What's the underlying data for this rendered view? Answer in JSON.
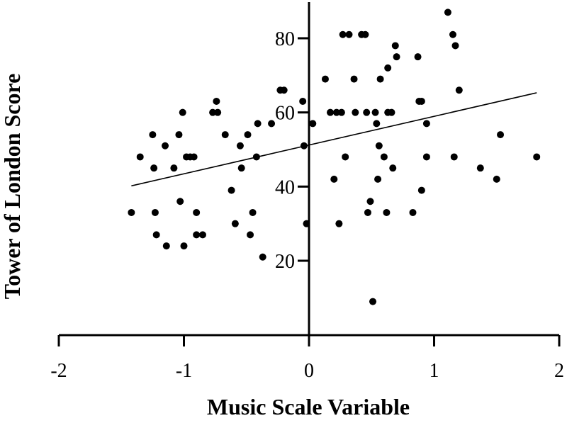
{
  "chart_data": {
    "type": "scatter",
    "title": "",
    "xlabel": "Music Scale Variable",
    "ylabel": "Tower of London Score",
    "xlim": [
      -2,
      2
    ],
    "ylim": [
      0,
      90
    ],
    "x_ticks": [
      -2,
      -1,
      0,
      1,
      2
    ],
    "y_ticks": [
      20,
      40,
      60,
      80
    ],
    "grid": false,
    "legend": "none",
    "point_color": "#000000",
    "trendline": {
      "x": [
        -1.42,
        1.82
      ],
      "y": [
        40.2,
        65.3
      ]
    },
    "points": [
      [
        -1.42,
        33
      ],
      [
        -1.35,
        48
      ],
      [
        -1.25,
        54
      ],
      [
        -1.24,
        45
      ],
      [
        -1.23,
        33
      ],
      [
        -1.22,
        27
      ],
      [
        -1.15,
        51
      ],
      [
        -1.14,
        24
      ],
      [
        -1.08,
        45
      ],
      [
        -1.04,
        54
      ],
      [
        -1.03,
        36
      ],
      [
        -1.01,
        60
      ],
      [
        -1.0,
        24
      ],
      [
        -0.98,
        48
      ],
      [
        -0.95,
        48
      ],
      [
        -0.92,
        48
      ],
      [
        -0.9,
        33
      ],
      [
        -0.9,
        27
      ],
      [
        -0.85,
        27
      ],
      [
        -0.77,
        60
      ],
      [
        -0.74,
        63
      ],
      [
        -0.73,
        60
      ],
      [
        -0.67,
        54
      ],
      [
        -0.62,
        39
      ],
      [
        -0.59,
        30
      ],
      [
        -0.55,
        51
      ],
      [
        -0.54,
        45
      ],
      [
        -0.49,
        54
      ],
      [
        -0.47,
        27
      ],
      [
        -0.45,
        33
      ],
      [
        -0.42,
        48
      ],
      [
        -0.41,
        57
      ],
      [
        -0.37,
        21
      ],
      [
        -0.3,
        57
      ],
      [
        -0.23,
        66
      ],
      [
        -0.2,
        66
      ],
      [
        -0.05,
        63
      ],
      [
        -0.04,
        51
      ],
      [
        -0.02,
        30
      ],
      [
        0.03,
        57
      ],
      [
        0.13,
        69
      ],
      [
        0.17,
        60
      ],
      [
        0.2,
        42
      ],
      [
        0.22,
        60
      ],
      [
        0.24,
        30
      ],
      [
        0.26,
        60
      ],
      [
        0.27,
        81
      ],
      [
        0.29,
        48
      ],
      [
        0.32,
        81
      ],
      [
        0.36,
        69
      ],
      [
        0.37,
        60
      ],
      [
        0.42,
        81
      ],
      [
        0.45,
        81
      ],
      [
        0.46,
        60
      ],
      [
        0.47,
        33
      ],
      [
        0.49,
        36
      ],
      [
        0.51,
        9
      ],
      [
        0.53,
        60
      ],
      [
        0.54,
        57
      ],
      [
        0.55,
        42
      ],
      [
        0.56,
        51
      ],
      [
        0.57,
        69
      ],
      [
        0.6,
        48
      ],
      [
        0.62,
        33
      ],
      [
        0.63,
        72
      ],
      [
        0.63,
        60
      ],
      [
        0.66,
        60
      ],
      [
        0.67,
        45
      ],
      [
        0.69,
        78
      ],
      [
        0.7,
        75
      ],
      [
        0.83,
        33
      ],
      [
        0.87,
        75
      ],
      [
        0.88,
        63
      ],
      [
        0.9,
        63
      ],
      [
        0.9,
        39
      ],
      [
        0.94,
        57
      ],
      [
        0.94,
        48
      ],
      [
        1.11,
        87
      ],
      [
        1.15,
        81
      ],
      [
        1.16,
        48
      ],
      [
        1.17,
        78
      ],
      [
        1.2,
        66
      ],
      [
        1.37,
        45
      ],
      [
        1.5,
        42
      ],
      [
        1.53,
        54
      ],
      [
        1.82,
        48
      ]
    ]
  }
}
